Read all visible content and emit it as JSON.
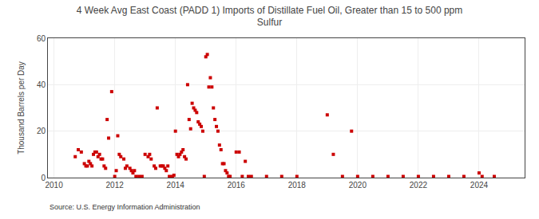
{
  "chart_data": {
    "type": "scatter",
    "title": "4 Week Avg East Coast (PADD 1) Imports of Distillate Fuel Oil, Greater than 15 to 500 ppm\nSulfur",
    "ylabel": "Thousand Barrels per Day",
    "source": "Source: U.S. Energy Information Administration",
    "color": "#cc0000",
    "marker": "square",
    "grid": true,
    "xlim": [
      2009.8,
      2025.5
    ],
    "ylim": [
      0,
      60
    ],
    "xticks": [
      2010,
      2012,
      2014,
      2016,
      2018,
      2020,
      2022,
      2024
    ],
    "yticks": [
      0,
      20,
      40,
      60
    ],
    "x": [
      2010.7,
      2010.8,
      2010.9,
      2011.0,
      2011.05,
      2011.1,
      2011.15,
      2011.2,
      2011.25,
      2011.3,
      2011.35,
      2011.4,
      2011.45,
      2011.5,
      2011.55,
      2011.6,
      2011.65,
      2011.7,
      2011.75,
      2011.8,
      2011.9,
      2012.0,
      2012.05,
      2012.1,
      2012.15,
      2012.2,
      2012.3,
      2012.35,
      2012.4,
      2012.5,
      2012.55,
      2012.6,
      2012.65,
      2012.7,
      2012.8,
      2012.9,
      2013.0,
      2013.1,
      2013.15,
      2013.2,
      2013.3,
      2013.35,
      2013.4,
      2013.5,
      2013.55,
      2013.6,
      2013.65,
      2013.7,
      2013.75,
      2013.8,
      2013.9,
      2013.95,
      2014.0,
      2014.05,
      2014.1,
      2014.15,
      2014.2,
      2014.25,
      2014.3,
      2014.35,
      2014.4,
      2014.45,
      2014.5,
      2014.55,
      2014.6,
      2014.65,
      2014.7,
      2014.75,
      2014.8,
      2014.85,
      2014.9,
      2014.95,
      2015.0,
      2015.05,
      2015.1,
      2015.15,
      2015.2,
      2015.25,
      2015.3,
      2015.35,
      2015.4,
      2015.45,
      2015.5,
      2015.55,
      2015.6,
      2015.65,
      2015.7,
      2015.75,
      2015.8,
      2016.0,
      2016.1,
      2016.2,
      2016.3,
      2016.4,
      2016.5,
      2017.0,
      2017.5,
      2018.0,
      2019.0,
      2019.2,
      2019.5,
      2019.8,
      2020.0,
      2020.5,
      2021.0,
      2021.5,
      2022.0,
      2022.5,
      2023.0,
      2023.5,
      2024.0,
      2024.1,
      2024.5
    ],
    "values": [
      9,
      12,
      11,
      6,
      5,
      5,
      7,
      6,
      5,
      10,
      11,
      11,
      9,
      10,
      8,
      8,
      5,
      4,
      25,
      17,
      37,
      0.5,
      3,
      18,
      10,
      9,
      8,
      4,
      5,
      4,
      3,
      2,
      3,
      0.5,
      0.5,
      0.5,
      10,
      9,
      10,
      8,
      5,
      4,
      30,
      5,
      5,
      5,
      4,
      3,
      5,
      0.5,
      0.5,
      1,
      20,
      10,
      9,
      10,
      11,
      12,
      9,
      8,
      40,
      25,
      21,
      32,
      30,
      29,
      28,
      24,
      23,
      22,
      20,
      0.5,
      52,
      53,
      39,
      43,
      39,
      30,
      25,
      22,
      20,
      14,
      12,
      6,
      6,
      3,
      2,
      0.5,
      0.5,
      11,
      11,
      0.5,
      7,
      0.5,
      0.5,
      0.5,
      0.5,
      0.5,
      27,
      10,
      0.5,
      20,
      0.5,
      0.5,
      0.5,
      0.5,
      0.5,
      0.5,
      0.5,
      0.5,
      2,
      0.5,
      0.5
    ]
  }
}
